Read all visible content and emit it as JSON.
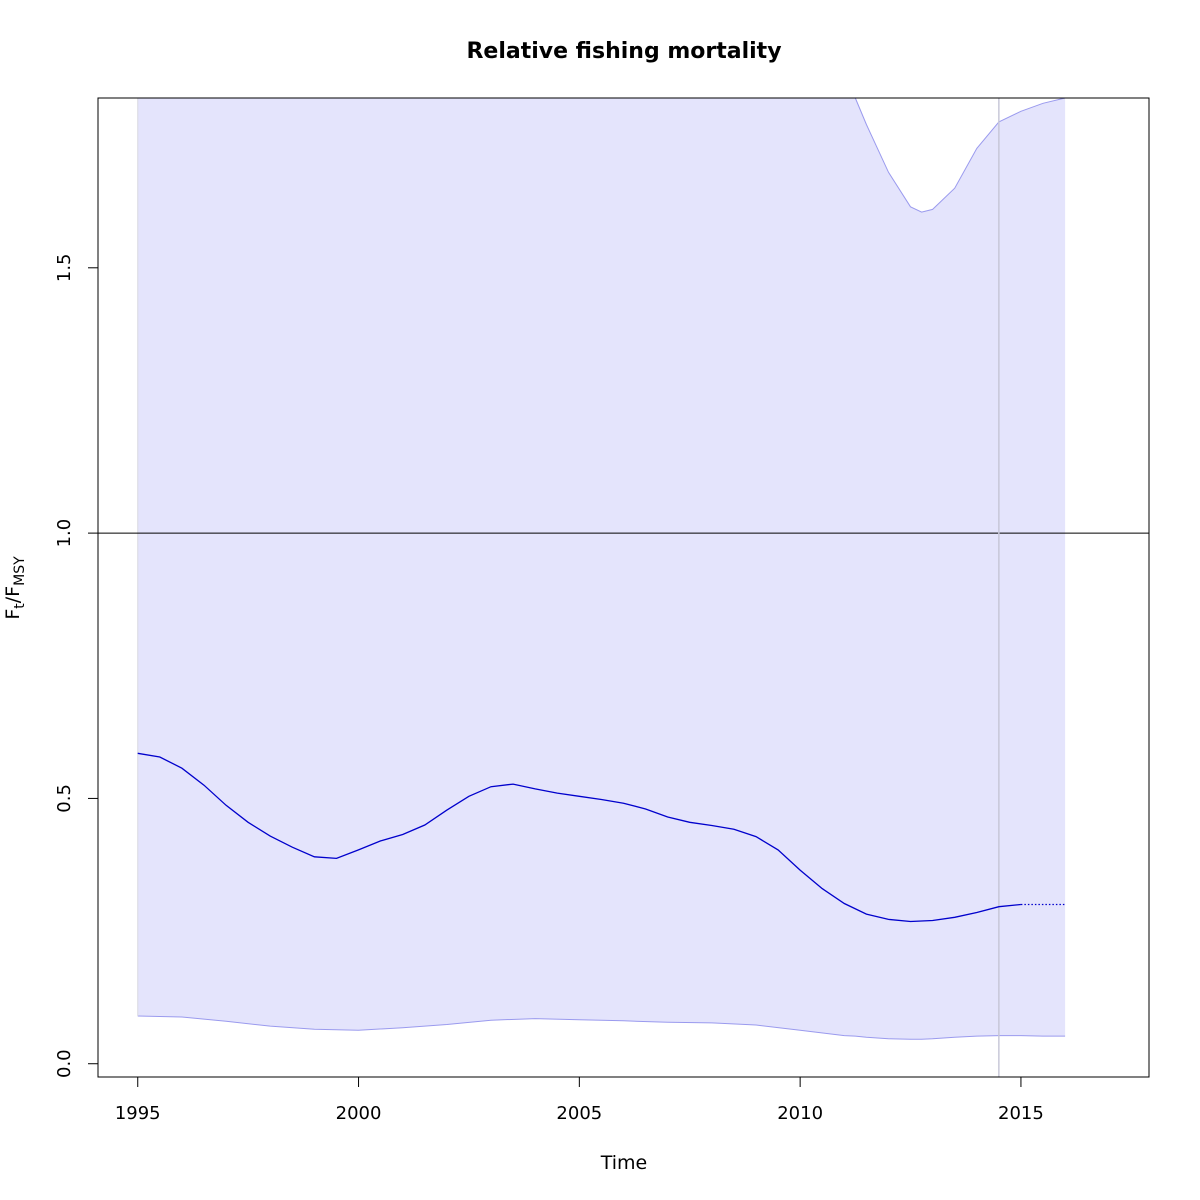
{
  "chart_data": {
    "type": "line",
    "title": "Relative fishing mortality",
    "xlabel": "Time",
    "ylabel_main": "F",
    "ylabel_main_sub": "t",
    "ylabel_slash": "/",
    "ylabel_ref": "F",
    "ylabel_ref_sub": "MSY",
    "xlim": [
      1994.1,
      2017.9
    ],
    "ylim": [
      -0.025,
      1.82
    ],
    "x_ticks": [
      1995,
      2000,
      2005,
      2010,
      2015
    ],
    "x_tick_labels": [
      "1995",
      "2000",
      "2005",
      "2010",
      "2015"
    ],
    "y_ticks": [
      0.0,
      0.5,
      1.0,
      1.5
    ],
    "y_tick_labels": [
      "0.0",
      "0.5",
      "1.0",
      "1.5"
    ],
    "reference_line_y": 1.0,
    "vertical_marker_x": 2014.5,
    "colors": {
      "estimate": "#0000cc",
      "band_fill": "#e4e4fc",
      "band_edge": "#9a9aee",
      "reference": "#000000",
      "marker": "#c8c8d8"
    },
    "series": [
      {
        "x": [
          1995.0,
          1995.5,
          1996.0,
          1996.5,
          1997.0,
          1997.5,
          1998.0,
          1998.5,
          1999.0,
          1999.5,
          2000.0,
          2000.5,
          2001.0,
          2001.5,
          2002.0,
          2002.5,
          2003.0,
          2003.5,
          2004.0,
          2004.5,
          2005.0,
          2005.5,
          2006.0,
          2006.5,
          2007.0,
          2007.5,
          2008.0,
          2008.5,
          2009.0,
          2009.5,
          2010.0,
          2010.5,
          2011.0,
          2011.5,
          2012.0,
          2012.5,
          2013.0,
          2013.5,
          2014.0,
          2014.5,
          2015.0
        ],
        "values": [
          0.585,
          0.578,
          0.557,
          0.525,
          0.487,
          0.455,
          0.429,
          0.408,
          0.39,
          0.387,
          0.403,
          0.42,
          0.432,
          0.45,
          0.478,
          0.504,
          0.522,
          0.527,
          0.518,
          0.51,
          0.504,
          0.498,
          0.491,
          0.48,
          0.465,
          0.455,
          0.449,
          0.442,
          0.428,
          0.403,
          0.365,
          0.33,
          0.302,
          0.282,
          0.272,
          0.268,
          0.27,
          0.276,
          0.285,
          0.296,
          0.3
        ]
      },
      {
        "x": [
          2015.0,
          2016.0
        ],
        "values": [
          0.3,
          0.3
        ]
      }
    ],
    "band": {
      "x": [
        1995.0,
        1996.0,
        1997.0,
        1998.0,
        1999.0,
        2000.0,
        2001.0,
        2002.0,
        2003.0,
        2004.0,
        2005.0,
        2006.0,
        2007.0,
        2008.0,
        2009.0,
        2010.0,
        2011.0,
        2011.25,
        2011.5,
        2012.0,
        2012.5,
        2012.75,
        2013.0,
        2013.5,
        2014.0,
        2014.5,
        2015.0,
        2015.5,
        2016.0
      ],
      "upper": [
        1.82,
        1.82,
        1.82,
        1.82,
        1.82,
        1.82,
        1.82,
        1.82,
        1.82,
        1.82,
        1.82,
        1.82,
        1.82,
        1.82,
        1.82,
        1.82,
        1.82,
        1.82,
        1.77,
        1.68,
        1.615,
        1.605,
        1.61,
        1.65,
        1.725,
        1.775,
        1.795,
        1.81,
        1.82
      ],
      "lower": [
        0.09,
        0.088,
        0.08,
        0.071,
        0.065,
        0.063,
        0.068,
        0.074,
        0.082,
        0.085,
        0.083,
        0.081,
        0.078,
        0.077,
        0.073,
        0.063,
        0.053,
        0.052,
        0.05,
        0.047,
        0.046,
        0.046,
        0.047,
        0.05,
        0.052,
        0.053,
        0.053,
        0.052,
        0.052
      ]
    }
  }
}
